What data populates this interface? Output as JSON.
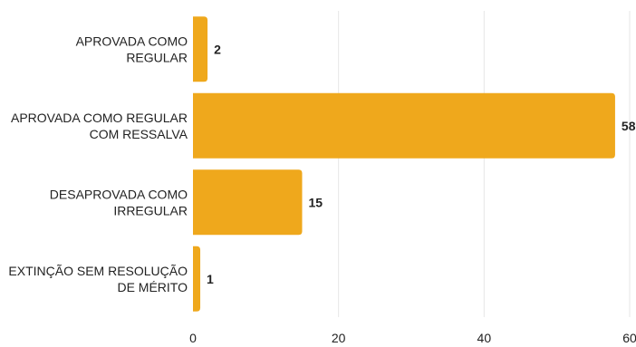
{
  "chart_data": {
    "type": "bar",
    "orientation": "horizontal",
    "categories": [
      [
        "APROVADA COMO",
        "REGULAR"
      ],
      [
        "APROVADA COMO REGULAR",
        "COM RESSALVA"
      ],
      [
        "DESAPROVADA COMO",
        "IRREGULAR"
      ],
      [
        "EXTINÇÃO SEM RESOLUÇÃO",
        "DE MÉRITO"
      ]
    ],
    "values": [
      2,
      58,
      15,
      1
    ],
    "data_labels": [
      "2",
      "58",
      "15",
      "1"
    ],
    "xlim": [
      0,
      60
    ],
    "xticks": [
      0,
      20,
      40,
      60
    ],
    "xtick_labels": [
      "0",
      "20",
      "40",
      "60"
    ],
    "grid": true,
    "legend": "none",
    "colors": {
      "bar": "#EFA81C",
      "grid": "#E6E6E6",
      "text": "#222222"
    }
  }
}
